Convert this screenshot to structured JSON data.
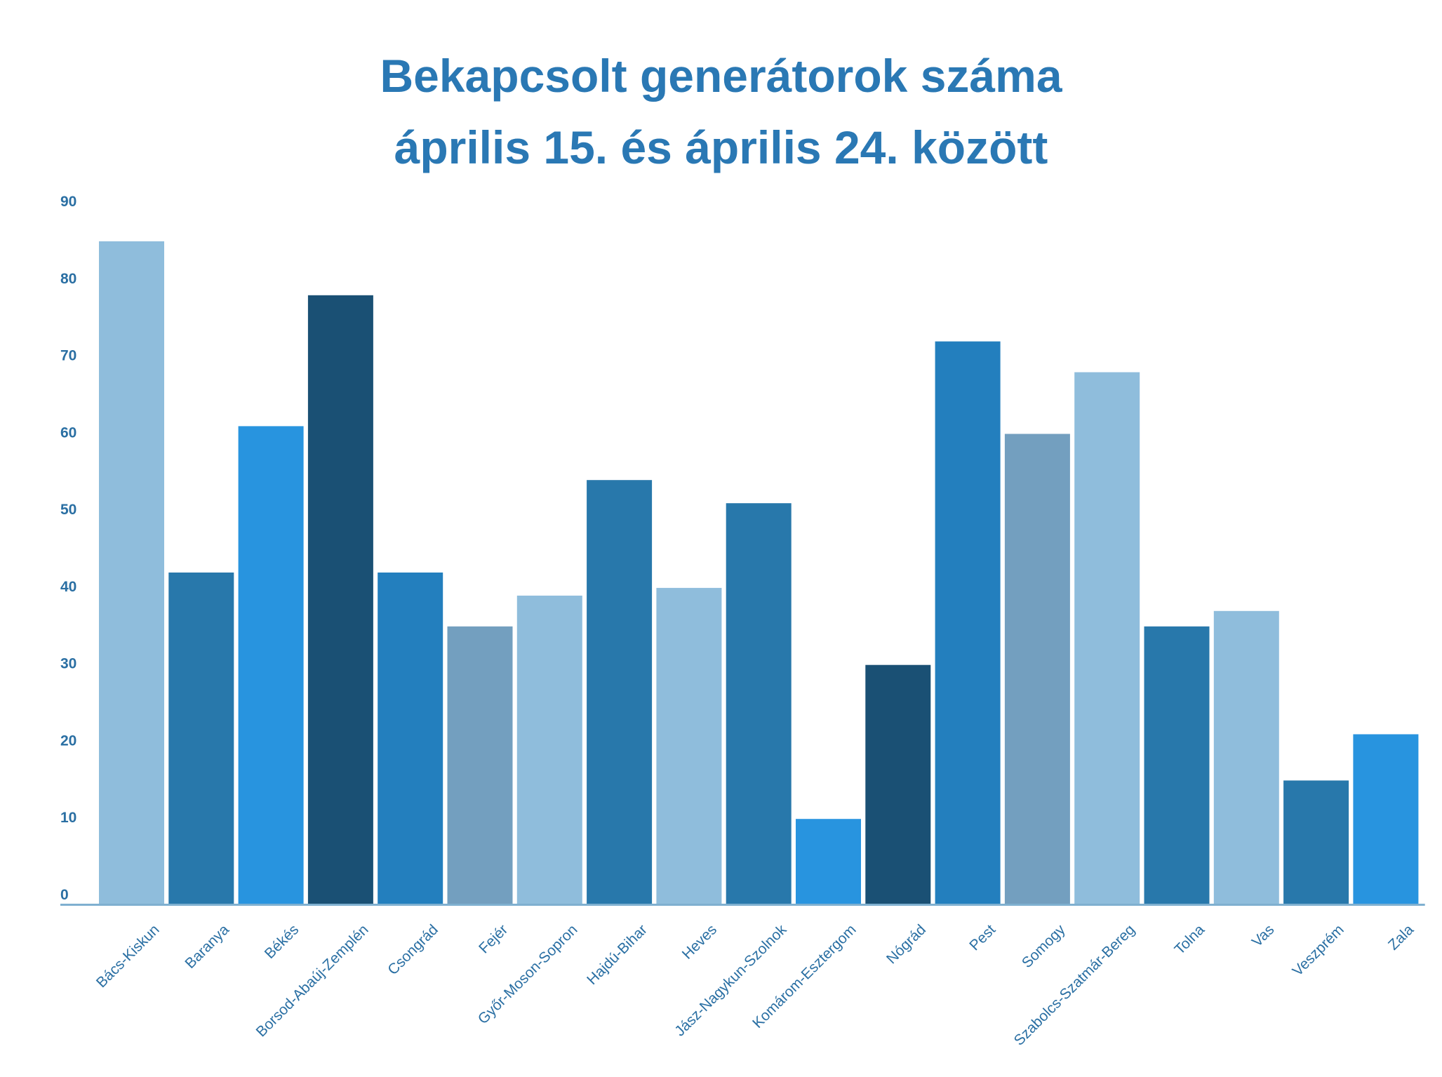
{
  "chart_data": {
    "type": "bar",
    "title": "Bekapcsolt generátorok száma",
    "subtitle": "április 15. és április 24. között",
    "xlabel": "",
    "ylabel": "",
    "ylim": [
      0,
      90
    ],
    "yticks": [
      0,
      10,
      20,
      30,
      40,
      50,
      60,
      70,
      80,
      90
    ],
    "grid": false,
    "categories": [
      "Bács-Kiskun",
      "Baranya",
      "Békés",
      "Borsod-Abaúj-Zemplén",
      "Csongrád",
      "Fejér",
      "Győr-Moson-Sopron",
      "Hajdú-Bihar",
      "Heves",
      "Jász-Nagykun-Szolnok",
      "Komárom-Esztergom",
      "Nógrád",
      "Pest",
      "Somogy",
      "Szabolcs-Szatmár-Bereg",
      "Tolna",
      "Vas",
      "Veszprém",
      "Zala"
    ],
    "values": [
      86,
      43,
      62,
      79,
      43,
      36,
      40,
      55,
      41,
      52,
      11,
      31,
      73,
      61,
      69,
      36,
      38,
      16,
      22
    ],
    "colors": [
      "#8fbddc",
      "#2878ab",
      "#2894df",
      "#1a5074",
      "#237fbe",
      "#739fbf",
      "#8fbddc",
      "#2878ab",
      "#8fbddc",
      "#2878ab",
      "#2894df",
      "#1a5074",
      "#237fbe",
      "#739fbf",
      "#8fbddc",
      "#2878ab",
      "#8fbddc",
      "#2878ab",
      "#2894df"
    ],
    "axis_color": "#7fb0d0"
  }
}
